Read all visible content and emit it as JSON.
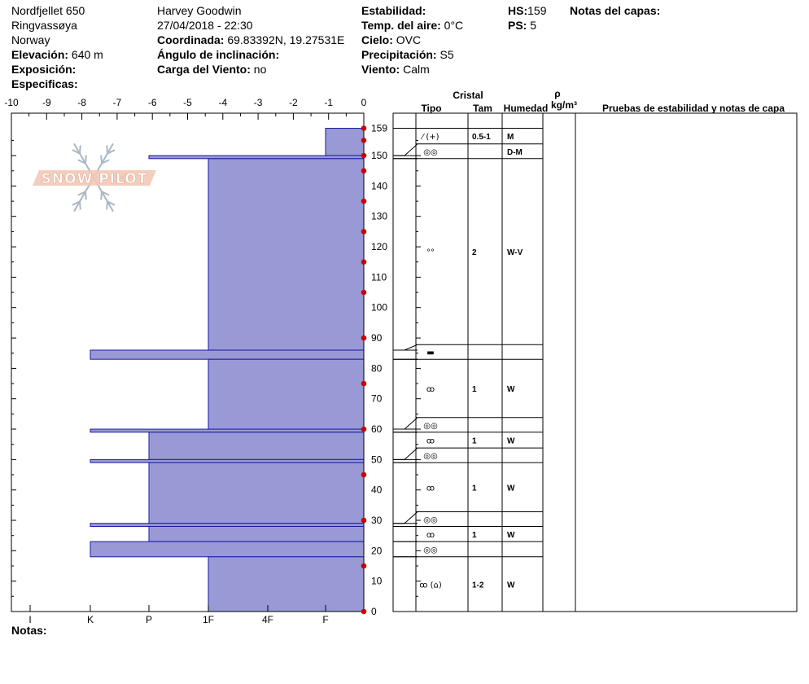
{
  "header": {
    "site": "Nordfjellet 650",
    "region": "Ringvassøya",
    "country": "Norway",
    "elevation_label": "Elevación:",
    "elevation_value": "640 m",
    "aspect_label": "Exposición:",
    "aspect_value": "",
    "specifics_label": "Especificas:",
    "specifics_value": "",
    "observer": "Harvey Goodwin",
    "datetime": "27/04/2018 - 22:30",
    "coord_label": "Coordinada:",
    "coord_value": "69.83392N, 19.27531E",
    "slope_label": "Ángulo de inclinación:",
    "slope_value": "",
    "wind_load_label": "Carga del Viento:",
    "wind_load_value": "no",
    "stability_label": "Estabilidad:",
    "stability_value": "",
    "air_temp_label": "Temp. del aire:",
    "air_temp_value": "0°C",
    "sky_label": "Cielo:",
    "sky_value": "OVC",
    "precip_label": "Precipitación:",
    "precip_value": "S5",
    "wind_label": "Viento:",
    "wind_value": "Calm",
    "hs_label": "HS:",
    "hs_value": "159",
    "ps_label": "PS:",
    "ps_value": "5",
    "layer_notes_label": "Notas del capas:",
    "notes_label": "Notas:"
  },
  "logo_text": "SNOW PILOT",
  "colors": {
    "hardness_fill": "#9999d6",
    "hardness_stroke": "#1a1aa0",
    "temp_marker": "#cc0000",
    "logo_fill": "#f2c9b8",
    "logo_snowflake": "#a9b8c4"
  },
  "chart_data": {
    "type": "snow-profile",
    "temperature_axis": {
      "ticks": [
        "-10",
        "-9",
        "-8",
        "-7",
        "-6",
        "-5",
        "-4",
        "-3",
        "-2",
        "-1",
        "0"
      ],
      "range": [
        -10,
        0
      ]
    },
    "depth_axis": {
      "ticks": [
        "0",
        "10",
        "20",
        "30",
        "40",
        "50",
        "60",
        "70",
        "80",
        "90",
        "100",
        "110",
        "120",
        "130",
        "140",
        "150",
        "159"
      ],
      "range": [
        0,
        159
      ],
      "unit": "cm"
    },
    "hardness_axis": {
      "labels": [
        "I",
        "K",
        "P",
        "1F",
        "4F",
        "F"
      ]
    },
    "hardness_layers": [
      {
        "bottom": 150,
        "top": 159,
        "hardness": "F"
      },
      {
        "bottom": 149,
        "top": 150,
        "hardness": "P"
      },
      {
        "bottom": 86,
        "top": 149,
        "hardness": "1F"
      },
      {
        "bottom": 83,
        "top": 86,
        "hardness": "K"
      },
      {
        "bottom": 60,
        "top": 83,
        "hardness": "1F"
      },
      {
        "bottom": 59,
        "top": 60,
        "hardness": "K"
      },
      {
        "bottom": 50,
        "top": 59,
        "hardness": "P"
      },
      {
        "bottom": 49,
        "top": 50,
        "hardness": "K"
      },
      {
        "bottom": 29,
        "top": 49,
        "hardness": "P"
      },
      {
        "bottom": 28,
        "top": 29,
        "hardness": "K"
      },
      {
        "bottom": 23,
        "top": 28,
        "hardness": "P"
      },
      {
        "bottom": 18,
        "top": 23,
        "hardness": "K"
      },
      {
        "bottom": 0,
        "top": 18,
        "hardness": "1F"
      }
    ],
    "temperature_profile": [
      {
        "depth": 159,
        "temp": 0
      },
      {
        "depth": 155,
        "temp": 0
      },
      {
        "depth": 150,
        "temp": 0
      },
      {
        "depth": 145,
        "temp": 0
      },
      {
        "depth": 135,
        "temp": 0
      },
      {
        "depth": 125,
        "temp": 0
      },
      {
        "depth": 115,
        "temp": 0
      },
      {
        "depth": 105,
        "temp": 0
      },
      {
        "depth": 90,
        "temp": 0
      },
      {
        "depth": 75,
        "temp": 0
      },
      {
        "depth": 60,
        "temp": 0
      },
      {
        "depth": 45,
        "temp": 0
      },
      {
        "depth": 30,
        "temp": 0
      },
      {
        "depth": 15,
        "temp": 0
      },
      {
        "depth": 0,
        "temp": 0
      }
    ],
    "table_headers": {
      "crystal": "Cristal",
      "type": "Tipo",
      "size": "Tam",
      "moisture": "Humedad",
      "density_symbol": "ρ",
      "density_unit": "kg/m³",
      "tests": "Pruebas de estabilidad y notas de capa"
    },
    "layers_table": [
      {
        "bottom": 150,
        "top": 159,
        "type": "⁄ (+)",
        "size": "0.5-1",
        "moisture": "M"
      },
      {
        "bottom": 149,
        "top": 150,
        "type": "◎◎",
        "size": "",
        "moisture": "D-M"
      },
      {
        "bottom": 86,
        "top": 149,
        "type": "°°",
        "size": "2",
        "moisture": "W-V"
      },
      {
        "bottom": 83,
        "top": 86,
        "type": "▬",
        "size": "",
        "moisture": ""
      },
      {
        "bottom": 60,
        "top": 83,
        "type": "ꝏ",
        "size": "1",
        "moisture": "W"
      },
      {
        "bottom": 59,
        "top": 60,
        "type": "◎◎",
        "size": "",
        "moisture": ""
      },
      {
        "bottom": 50,
        "top": 59,
        "type": "ꝏ",
        "size": "1",
        "moisture": "W"
      },
      {
        "bottom": 49,
        "top": 50,
        "type": "◎◎",
        "size": "",
        "moisture": ""
      },
      {
        "bottom": 29,
        "top": 49,
        "type": "ꝏ",
        "size": "1",
        "moisture": "W"
      },
      {
        "bottom": 28,
        "top": 29,
        "type": "◎◎",
        "size": "",
        "moisture": ""
      },
      {
        "bottom": 23,
        "top": 28,
        "type": "ꝏ",
        "size": "1",
        "moisture": "W"
      },
      {
        "bottom": 18,
        "top": 23,
        "type": "◎◎",
        "size": "",
        "moisture": ""
      },
      {
        "bottom": 0,
        "top": 18,
        "type": "ꝏ (⌂)",
        "size": "1-2",
        "moisture": "W"
      }
    ]
  }
}
